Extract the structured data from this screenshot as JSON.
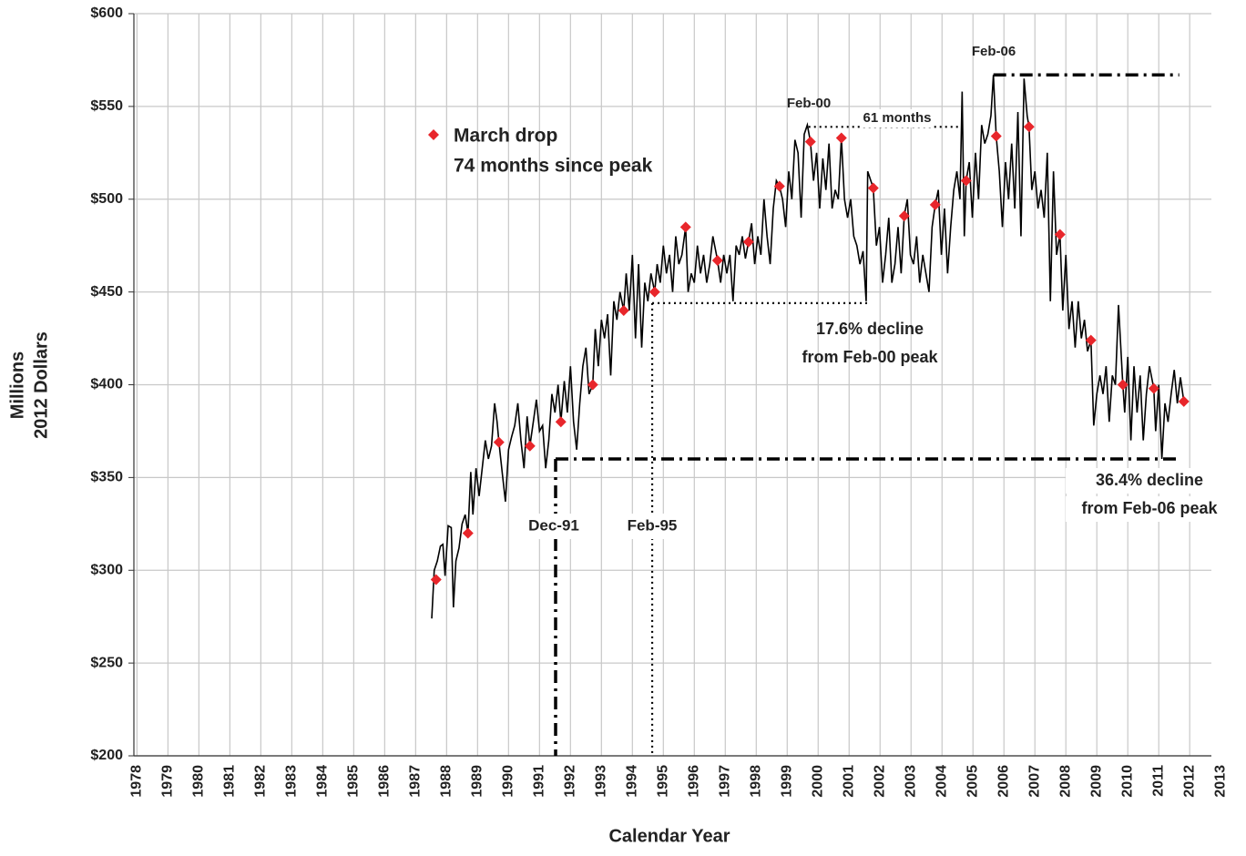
{
  "chart_data": {
    "type": "line",
    "ylabel": [
      "Millions",
      "2012 Dollars"
    ],
    "xlabel": "Calendar Year",
    "xlim": [
      1978.4,
      2013.2
    ],
    "xticks": [
      {
        "value": 1978.5,
        "label": "1978"
      },
      {
        "value": 1979.5,
        "label": "1979"
      },
      {
        "value": 1980.5,
        "label": "1980"
      },
      {
        "value": 1981.5,
        "label": "1981"
      },
      {
        "value": 1982.5,
        "label": "1982"
      },
      {
        "value": 1983.5,
        "label": "1983"
      },
      {
        "value": 1984.5,
        "label": "1984"
      },
      {
        "value": 1985.5,
        "label": "1985"
      },
      {
        "value": 1986.5,
        "label": "1986"
      },
      {
        "value": 1987.5,
        "label": "1987"
      },
      {
        "value": 1988.5,
        "label": "1988"
      },
      {
        "value": 1989.5,
        "label": "1989"
      },
      {
        "value": 1990.5,
        "label": "1990"
      },
      {
        "value": 1991.5,
        "label": "1991"
      },
      {
        "value": 1992.5,
        "label": "1992"
      },
      {
        "value": 1993.5,
        "label": "1993"
      },
      {
        "value": 1994.5,
        "label": "1994"
      },
      {
        "value": 1995.5,
        "label": "1995"
      },
      {
        "value": 1996.5,
        "label": "1996"
      },
      {
        "value": 1997.5,
        "label": "1997"
      },
      {
        "value": 1998.5,
        "label": "1998"
      },
      {
        "value": 1999.5,
        "label": "1999"
      },
      {
        "value": 2000.5,
        "label": "2000"
      },
      {
        "value": 2001.5,
        "label": "2001"
      },
      {
        "value": 2002.5,
        "label": "2002"
      },
      {
        "value": 2003.5,
        "label": "2003"
      },
      {
        "value": 2004.5,
        "label": "2004"
      },
      {
        "value": 2005.5,
        "label": "2005"
      },
      {
        "value": 2006.5,
        "label": "2006"
      },
      {
        "value": 2007.5,
        "label": "2007"
      },
      {
        "value": 2008.5,
        "label": "2008"
      },
      {
        "value": 2009.5,
        "label": "2009"
      },
      {
        "value": 2010.5,
        "label": "2010"
      },
      {
        "value": 2011.5,
        "label": "2011"
      },
      {
        "value": 2012.5,
        "label": "2012"
      },
      {
        "value": 2013.5,
        "label": "2013"
      }
    ],
    "ylim": [
      200,
      600
    ],
    "yticks": [
      {
        "value": 200,
        "label": "$200"
      },
      {
        "value": 250,
        "label": "$250"
      },
      {
        "value": 300,
        "label": "$300"
      },
      {
        "value": 350,
        "label": "$350"
      },
      {
        "value": 400,
        "label": "$400"
      },
      {
        "value": 450,
        "label": "$450"
      },
      {
        "value": 500,
        "label": "$500"
      },
      {
        "value": 550,
        "label": "$550"
      },
      {
        "value": 600,
        "label": "$600"
      }
    ],
    "grid": true,
    "series": [
      {
        "color": "#000000",
        "marker": "none",
        "x": [
          1988.02,
          1988.1,
          1988.2,
          1988.3,
          1988.38,
          1988.45,
          1988.55,
          1988.65,
          1988.72,
          1988.8,
          1988.9,
          1989.0,
          1989.1,
          1989.19,
          1989.28,
          1989.35,
          1989.45,
          1989.55,
          1989.65,
          1989.75,
          1989.85,
          1989.95,
          1990.05,
          1990.13,
          1990.19,
          1990.3,
          1990.4,
          1990.5,
          1990.6,
          1990.7,
          1990.8,
          1990.9,
          1991.0,
          1991.1,
          1991.19,
          1991.3,
          1991.4,
          1991.5,
          1991.6,
          1991.7,
          1991.8,
          1991.9,
          1992.0,
          1992.1,
          1992.19,
          1992.3,
          1992.4,
          1992.5,
          1992.6,
          1992.7,
          1992.8,
          1992.9,
          1993.0,
          1993.1,
          1993.22,
          1993.3,
          1993.4,
          1993.5,
          1993.6,
          1993.7,
          1993.8,
          1993.9,
          1994.0,
          1994.1,
          1994.22,
          1994.3,
          1994.4,
          1994.5,
          1994.6,
          1994.7,
          1994.8,
          1994.9,
          1995.0,
          1995.1,
          1995.22,
          1995.3,
          1995.4,
          1995.5,
          1995.6,
          1995.7,
          1995.8,
          1995.9,
          1996.0,
          1996.1,
          1996.22,
          1996.3,
          1996.4,
          1996.5,
          1996.6,
          1996.7,
          1996.8,
          1996.9,
          1997.0,
          1997.1,
          1997.25,
          1997.35,
          1997.45,
          1997.55,
          1997.65,
          1997.75,
          1997.85,
          1997.95,
          1998.05,
          1998.15,
          1998.25,
          1998.35,
          1998.45,
          1998.55,
          1998.65,
          1998.75,
          1998.85,
          1998.95,
          1999.05,
          1999.15,
          1999.25,
          1999.35,
          1999.45,
          1999.55,
          1999.65,
          1999.75,
          1999.85,
          1999.95,
          2000.05,
          2000.15,
          2000.25,
          2000.35,
          2000.45,
          2000.55,
          2000.65,
          2000.75,
          2000.85,
          2000.95,
          2001.05,
          2001.15,
          2001.25,
          2001.35,
          2001.45,
          2001.55,
          2001.65,
          2001.75,
          2001.85,
          2001.95,
          2002.05,
          2002.1,
          2002.2,
          2002.28,
          2002.38,
          2002.48,
          2002.58,
          2002.68,
          2002.78,
          2002.88,
          2002.98,
          2003.08,
          2003.18,
          2003.28,
          2003.38,
          2003.48,
          2003.58,
          2003.68,
          2003.78,
          2003.88,
          2003.98,
          2004.08,
          2004.18,
          2004.28,
          2004.38,
          2004.48,
          2004.58,
          2004.68,
          2004.78,
          2004.88,
          2004.98,
          2005.08,
          2005.15,
          2005.22,
          2005.28,
          2005.38,
          2005.48,
          2005.58,
          2005.68,
          2005.78,
          2005.88,
          2005.98,
          2006.08,
          2006.16,
          2006.25,
          2006.35,
          2006.45,
          2006.55,
          2006.65,
          2006.75,
          2006.85,
          2006.95,
          2007.05,
          2007.15,
          2007.25,
          2007.31,
          2007.4,
          2007.5,
          2007.6,
          2007.7,
          2007.8,
          2007.9,
          2008.0,
          2008.1,
          2008.2,
          2008.31,
          2008.4,
          2008.5,
          2008.6,
          2008.7,
          2008.8,
          2008.9,
          2009.0,
          2009.1,
          2009.2,
          2009.31,
          2009.4,
          2009.5,
          2009.6,
          2009.7,
          2009.8,
          2009.9,
          2010.0,
          2010.1,
          2010.2,
          2010.34,
          2010.4,
          2010.5,
          2010.6,
          2010.7,
          2010.8,
          2010.9,
          2011.0,
          2011.1,
          2011.2,
          2011.34,
          2011.4,
          2011.5,
          2011.6,
          2011.7,
          2011.8,
          2011.9,
          2012.0,
          2012.1,
          2012.2,
          2012.31
        ],
        "values": [
          274,
          300,
          305,
          313,
          314,
          297,
          324,
          323,
          280,
          305,
          312,
          325,
          330,
          320,
          353,
          330,
          355,
          340,
          355,
          370,
          360,
          367,
          390,
          380,
          369,
          352,
          337,
          365,
          372,
          378,
          390,
          370,
          355,
          383,
          367,
          380,
          392,
          375,
          378,
          355,
          370,
          395,
          385,
          400,
          380,
          402,
          385,
          410,
          380,
          365,
          390,
          410,
          420,
          395,
          400,
          430,
          410,
          435,
          425,
          438,
          405,
          445,
          435,
          450,
          440,
          460,
          440,
          470,
          425,
          465,
          420,
          455,
          445,
          460,
          450,
          465,
          455,
          475,
          460,
          470,
          450,
          480,
          465,
          470,
          485,
          450,
          460,
          455,
          475,
          460,
          470,
          455,
          465,
          480,
          467,
          455,
          470,
          460,
          470,
          445,
          475,
          470,
          480,
          468,
          477,
          487,
          465,
          480,
          470,
          500,
          480,
          465,
          495,
          510,
          507,
          500,
          485,
          515,
          500,
          532,
          525,
          490,
          535,
          540,
          531,
          510,
          525,
          495,
          522,
          505,
          530,
          495,
          505,
          500,
          533,
          500,
          490,
          500,
          480,
          475,
          465,
          472,
          445,
          515,
          510,
          506,
          475,
          485,
          455,
          470,
          490,
          455,
          465,
          485,
          460,
          491,
          500,
          470,
          465,
          480,
          455,
          470,
          460,
          450,
          485,
          497,
          505,
          470,
          495,
          460,
          485,
          505,
          515,
          500,
          558,
          480,
          510,
          520,
          490,
          525,
          500,
          540,
          530,
          535,
          545,
          567,
          534,
          515,
          485,
          520,
          500,
          530,
          495,
          547,
          480,
          565,
          545,
          539,
          505,
          515,
          495,
          505,
          490,
          525,
          445,
          515,
          470,
          481,
          440,
          470,
          430,
          445,
          420,
          445,
          425,
          435,
          418,
          424,
          378,
          395,
          405,
          395,
          410,
          380,
          405,
          400,
          443,
          400,
          385,
          415,
          370,
          410,
          385,
          405,
          370,
          395,
          410,
          398,
          375,
          400,
          360,
          390,
          380,
          395,
          408,
          390,
          404,
          391
        ]
      },
      {
        "name": "March drop",
        "color": "#e8262b",
        "marker": "diamond",
        "x": [
          1988.16,
          1989.19,
          1990.19,
          1991.19,
          1992.19,
          1993.22,
          1994.22,
          1995.22,
          1996.22,
          1997.25,
          1998.25,
          1999.25,
          2000.25,
          2001.25,
          2002.28,
          2003.28,
          2004.28,
          2005.28,
          2006.25,
          2007.31,
          2008.31,
          2009.31,
          2010.34,
          2011.34,
          2012.31
        ],
        "values": [
          295,
          320,
          369,
          367,
          380,
          400,
          440,
          450,
          485,
          467,
          477,
          507,
          531,
          533,
          506,
          491,
          497,
          510,
          534,
          539,
          481,
          424,
          400,
          398,
          391
        ]
      }
    ],
    "legend_note": "74 months since peak",
    "reference_lines": [
      {
        "style": "dotted",
        "x": [
          2000.19,
          2005.11
        ],
        "y": [
          539,
          539
        ]
      },
      {
        "style": "dash-dot",
        "x": [
          2006.16,
          2012.16
        ],
        "y": [
          567,
          567
        ]
      },
      {
        "style": "dotted",
        "x": [
          1995.14,
          2002.08
        ],
        "y": [
          444,
          444
        ]
      },
      {
        "style": "dotted",
        "x": [
          1995.14,
          1995.14
        ],
        "y": [
          444,
          200
        ]
      },
      {
        "style": "dash-dot",
        "x": [
          1992.02,
          2012.16
        ],
        "y": [
          360,
          360
        ]
      },
      {
        "style": "dash-dot",
        "x": [
          1992.02,
          1992.02
        ],
        "y": [
          360,
          200
        ]
      }
    ],
    "annotations": [
      "Feb-00",
      "61 months",
      "Feb-06",
      "17.6% decline",
      "from Feb-00 peak",
      "36.4% decline",
      "from Feb-06 peak",
      "Dec-91",
      "Feb-95"
    ]
  }
}
